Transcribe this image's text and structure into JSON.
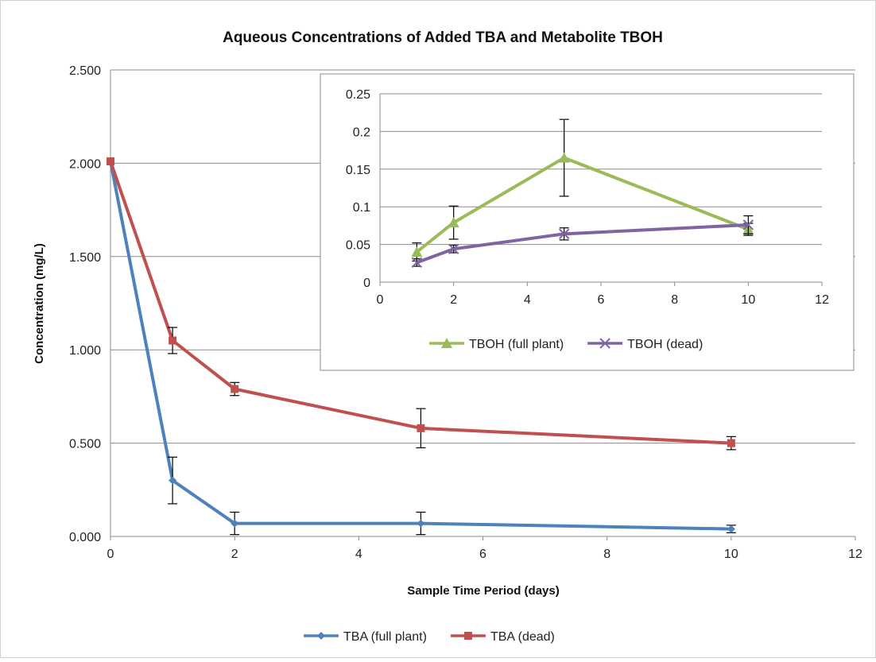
{
  "chart_data": [
    {
      "type": "line",
      "title": "Aqueous Concentrations of Added TBA and Metabolite TBOH",
      "xlabel": "Sample Time Period (days)",
      "ylabel": "Concentration (mg/L)",
      "xlim": [
        0,
        12
      ],
      "ylim": [
        0,
        2.5
      ],
      "x_ticks": [
        "0",
        "2",
        "4",
        "6",
        "8",
        "10",
        "12"
      ],
      "y_ticks": [
        "0.000",
        "0.500",
        "1.000",
        "1.500",
        "2.000",
        "2.500"
      ],
      "grid": "horizontal",
      "legend_position": "bottom",
      "series": [
        {
          "name": "TBA (full plant)",
          "color": "#4f81bd",
          "marker": "diamond",
          "x": [
            0,
            1,
            2,
            5,
            10
          ],
          "y": [
            2.01,
            0.3,
            0.07,
            0.07,
            0.04
          ],
          "error": [
            0,
            0.125,
            0.06,
            0.06,
            0.02
          ]
        },
        {
          "name": "TBA (dead)",
          "color": "#c0504d",
          "marker": "square",
          "x": [
            0,
            1,
            2,
            5,
            10
          ],
          "y": [
            2.01,
            1.05,
            0.79,
            0.58,
            0.5
          ],
          "error": [
            0,
            0.07,
            0.035,
            0.105,
            0.035
          ]
        }
      ]
    },
    {
      "type": "line",
      "title": "",
      "xlim": [
        0,
        12
      ],
      "ylim": [
        0,
        0.25
      ],
      "x_ticks": [
        "0",
        "2",
        "4",
        "6",
        "8",
        "10",
        "12"
      ],
      "y_ticks": [
        "0",
        "0.05",
        "0.1",
        "0.15",
        "0.2",
        "0.25"
      ],
      "grid": "horizontal",
      "legend_position": "bottom",
      "series": [
        {
          "name": "TBOH (full plant)",
          "color": "#9bbb59",
          "marker": "triangle",
          "x": [
            1,
            2,
            5,
            10
          ],
          "y": [
            0.04,
            0.079,
            0.165,
            0.07
          ],
          "error": [
            0.012,
            0.022,
            0.051,
            0.008
          ]
        },
        {
          "name": "TBOH (dead)",
          "color": "#8064a2",
          "marker": "x",
          "x": [
            1,
            2,
            5,
            10
          ],
          "y": [
            0.026,
            0.044,
            0.064,
            0.076
          ],
          "error": [
            0.005,
            0.005,
            0.008,
            0.012
          ]
        }
      ]
    }
  ]
}
